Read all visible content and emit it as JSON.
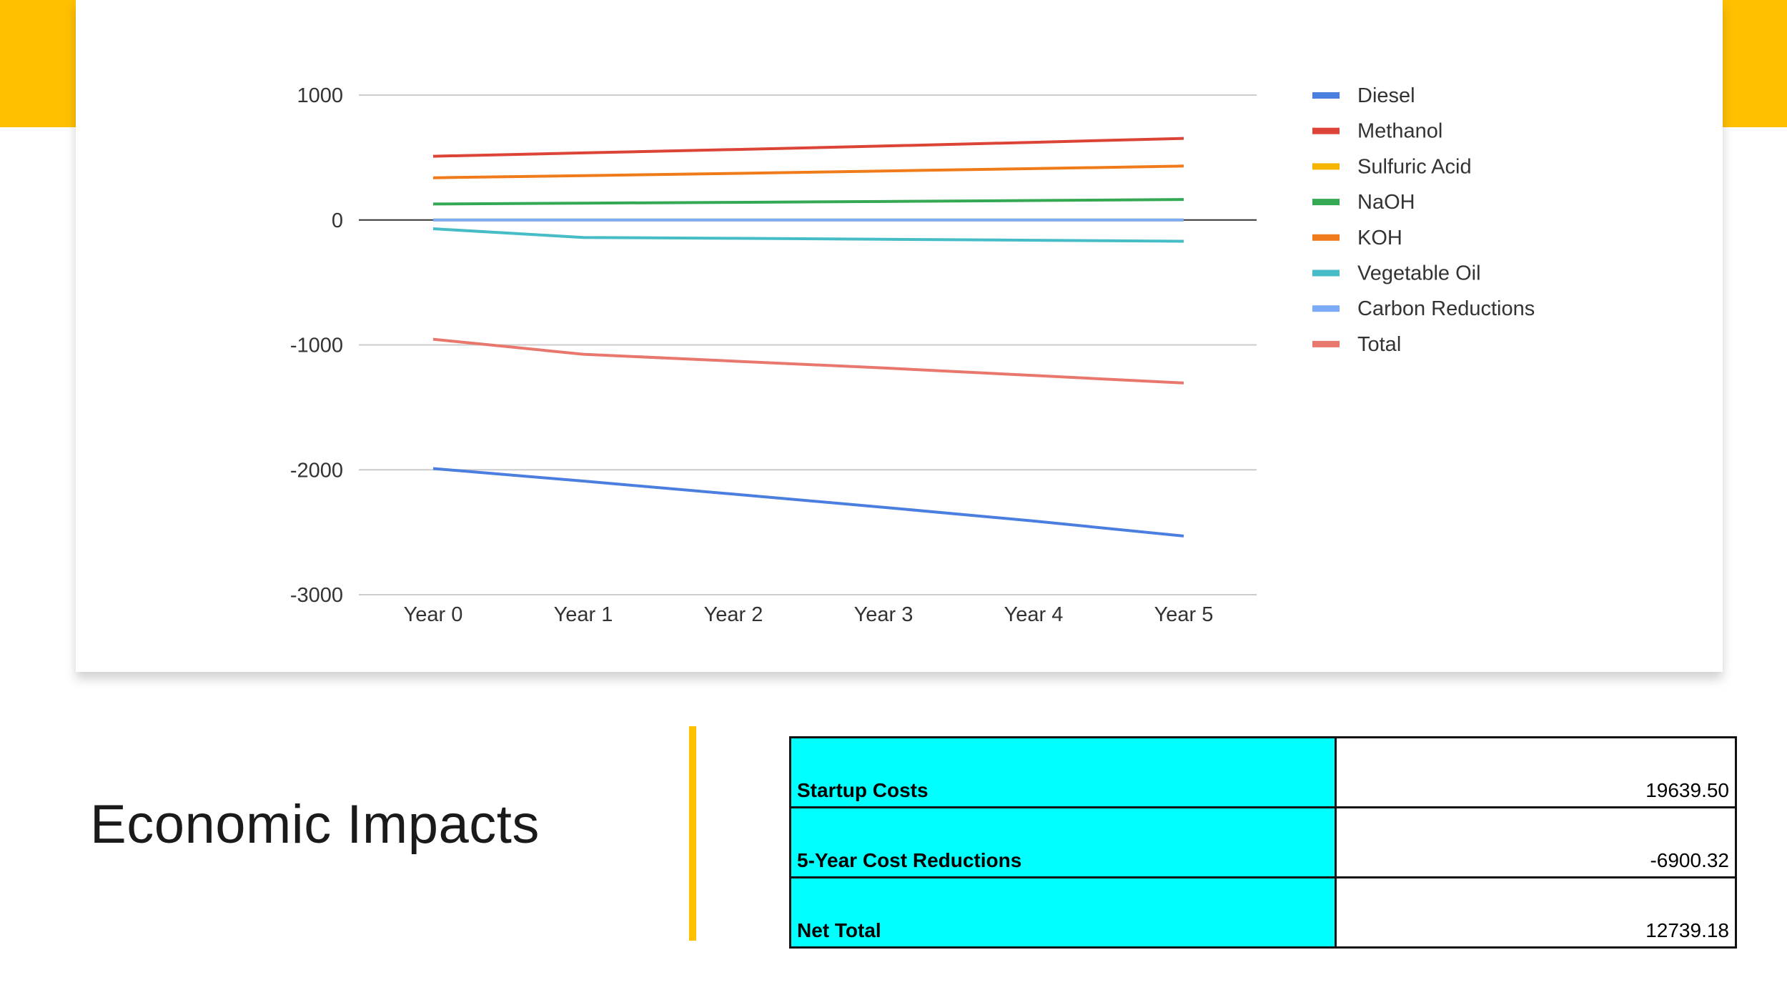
{
  "colors": {
    "accent": "#FFC000",
    "table_label_bg": "#00FFFF",
    "card_bg": "#ffffff"
  },
  "chart_data": {
    "type": "line",
    "categories": [
      "Year 0",
      "Year 1",
      "Year 2",
      "Year 3",
      "Year 4",
      "Year 5"
    ],
    "ylim": [
      -3000,
      1000
    ],
    "yticks": [
      1000,
      0,
      -1000,
      -2000,
      -3000
    ],
    "grid": true,
    "legend_position": "right",
    "series": [
      {
        "name": "Diesel",
        "color": "#4A7FE0",
        "values": [
          -1990,
          -2090,
          -2195,
          -2300,
          -2410,
          -2530
        ]
      },
      {
        "name": "Methanol",
        "color": "#DB4437",
        "values": [
          510,
          537,
          564,
          592,
          622,
          653
        ]
      },
      {
        "name": "Sulfuric Acid",
        "color": "#F4B400",
        "values": [
          0,
          0,
          0,
          0,
          0,
          0
        ]
      },
      {
        "name": "NaOH",
        "color": "#34A853",
        "values": [
          128,
          135,
          141,
          148,
          156,
          164
        ]
      },
      {
        "name": "KOH",
        "color": "#F07B1A",
        "values": [
          338,
          355,
          373,
          392,
          411,
          432
        ]
      },
      {
        "name": "Vegetable Oil",
        "color": "#46BDC6",
        "values": [
          -70,
          -140,
          -147,
          -155,
          -162,
          -170
        ]
      },
      {
        "name": "Carbon Reductions",
        "color": "#7BAAF7",
        "values": [
          0,
          0,
          0,
          0,
          0,
          0
        ]
      },
      {
        "name": "Total",
        "color": "#E8776E",
        "values": [
          -955,
          -1075,
          -1130,
          -1185,
          -1245,
          -1305
        ]
      }
    ]
  },
  "page": {
    "title": "Economic Impacts"
  },
  "summary_table": {
    "rows": [
      {
        "label": "Startup Costs",
        "value": "19639.50"
      },
      {
        "label": "5-Year Cost Reductions",
        "value": "-6900.32"
      },
      {
        "label": "Net Total",
        "value": "12739.18"
      }
    ]
  }
}
